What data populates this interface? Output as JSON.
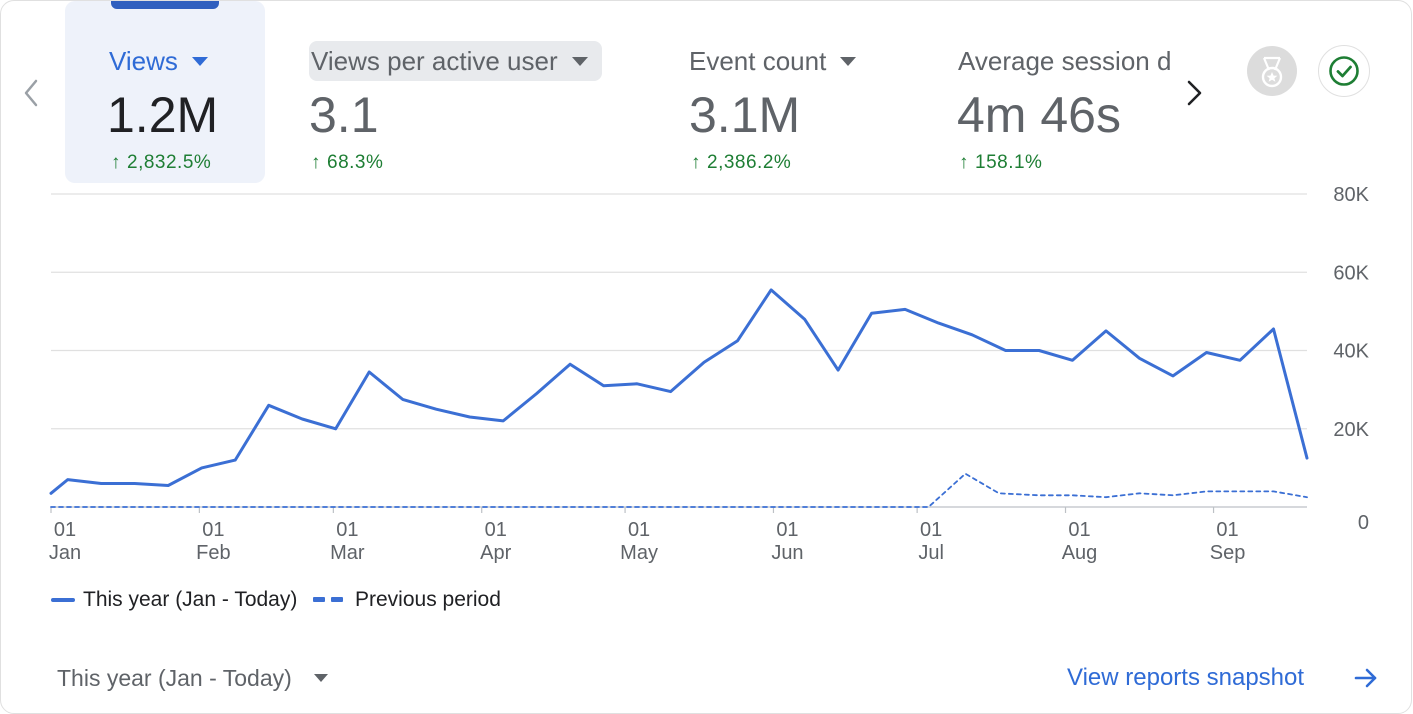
{
  "metrics": [
    {
      "label": "Views",
      "value": "1.2M",
      "delta": "2,832.5%",
      "selected": true
    },
    {
      "label": "Views per active user",
      "value": "3.1",
      "delta": "68.3%"
    },
    {
      "label": "Event count",
      "value": "3.1M",
      "delta": "2,386.2%"
    },
    {
      "label": "Average session d",
      "value": "4m 46s",
      "delta": "158.1%"
    }
  ],
  "icons": {
    "prev": "chevron-left-icon",
    "next": "chevron-right-icon",
    "badge": "medal-icon",
    "check": "check-circle-icon"
  },
  "colors": {
    "accent": "#2f6bd6",
    "series": "#3b6fd4",
    "positive_delta": "#1e7e34",
    "selected_bg": "#eef2fa"
  },
  "legend": {
    "current": "This year (Jan - Today)",
    "previous": "Previous period"
  },
  "footer": {
    "range_select": "This year (Jan - Today)",
    "link": "View reports snapshot"
  },
  "chart_data": {
    "type": "line",
    "y_ticks": [
      "80K",
      "60K",
      "40K",
      "20K",
      "0"
    ],
    "ylim": [
      0,
      80000
    ],
    "grid": true,
    "legend_position": "bottom-left",
    "x_ticks": [
      {
        "day": "01",
        "month": "Jan",
        "week": 0
      },
      {
        "day": "01",
        "month": "Feb",
        "week": 4.43
      },
      {
        "day": "01",
        "month": "Mar",
        "week": 8.43
      },
      {
        "day": "01",
        "month": "Apr",
        "week": 12.86
      },
      {
        "day": "01",
        "month": "May",
        "week": 17.14
      },
      {
        "day": "01",
        "month": "Jun",
        "week": 21.57
      },
      {
        "day": "01",
        "month": "Jul",
        "week": 25.86
      },
      {
        "day": "01",
        "month": "Aug",
        "week": 30.29
      },
      {
        "day": "01",
        "month": "Sep",
        "week": 34.71
      }
    ],
    "series": [
      {
        "name": "This year (Jan - Today)",
        "style": "solid",
        "x": [
          0,
          0.5,
          1.5,
          2.5,
          3.5,
          4.5,
          5.5,
          6.5,
          7.5,
          8.5,
          9.5,
          10.5,
          11.5,
          12.5,
          13.5,
          14.5,
          15.5,
          16.5,
          17.5,
          18.5,
          19.5,
          20.5,
          21.5,
          22.5,
          23.5,
          24.5,
          25.5,
          26.5,
          27.5,
          28.5,
          29.5,
          30.5,
          31.5,
          32.5,
          33.5,
          34.5,
          35.5,
          36.5,
          37.5
        ],
        "values": [
          3500,
          7000,
          6000,
          6000,
          5500,
          10000,
          12000,
          26000,
          22500,
          20000,
          34500,
          27500,
          25000,
          23000,
          22000,
          29000,
          36500,
          31000,
          31500,
          29500,
          37000,
          42500,
          55500,
          48000,
          35000,
          49500,
          50500,
          47000,
          44000,
          40000,
          40000,
          37500,
          45000,
          38000,
          33500,
          39500,
          37500,
          45500,
          12500
        ]
      },
      {
        "name": "Previous period",
        "style": "dashed",
        "x": [
          0,
          26.2,
          27.3,
          28.3,
          29.5,
          30.5,
          31.5,
          32.5,
          33.5,
          34.5,
          35.5,
          36.5,
          37.5
        ],
        "values": [
          0,
          0,
          8500,
          3500,
          3000,
          3000,
          2500,
          3500,
          3000,
          4000,
          4000,
          4000,
          2500
        ]
      }
    ]
  }
}
